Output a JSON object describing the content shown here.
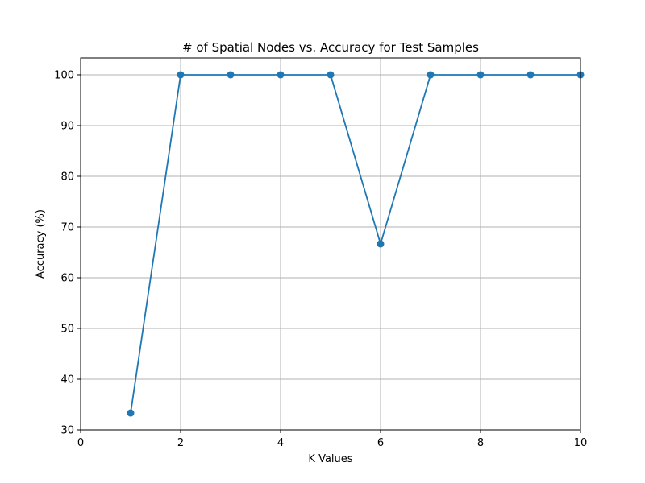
{
  "chart_data": {
    "type": "line",
    "title": "# of Spatial Nodes vs. Accuracy for Test Samples",
    "xlabel": "K Values",
    "ylabel": "Accuracy (%)",
    "xlim": [
      0,
      10
    ],
    "ylim": [
      30,
      103.33
    ],
    "xticks": [
      0,
      2,
      4,
      6,
      8,
      10
    ],
    "yticks": [
      30,
      40,
      50,
      60,
      70,
      80,
      90,
      100
    ],
    "grid": true,
    "series": [
      {
        "x": [
          1,
          2,
          3,
          4,
          5,
          6,
          7,
          8,
          9,
          10
        ],
        "values": [
          33.33,
          100,
          100,
          100,
          100,
          66.67,
          100,
          100,
          100,
          100
        ]
      }
    ],
    "colors": {
      "line": "#1f77b4",
      "grid": "#b0b0b0",
      "axis": "#000000"
    }
  }
}
